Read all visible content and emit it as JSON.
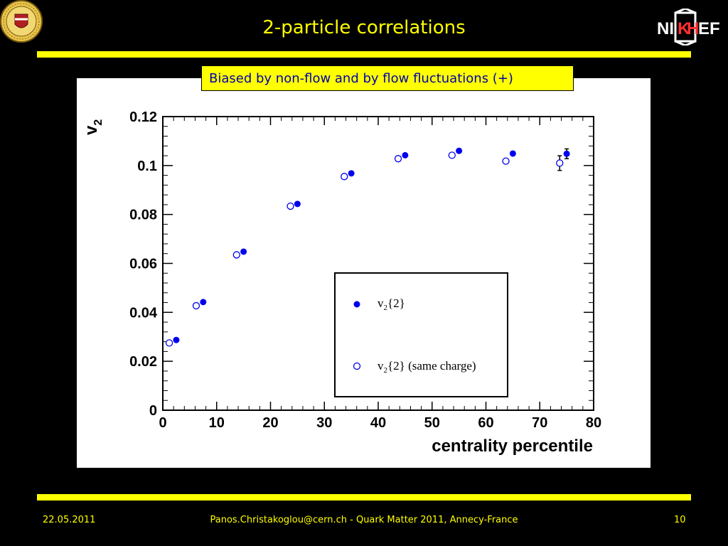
{
  "slide": {
    "title": "2-particle correlations",
    "note": "Biased by non-flow and by flow fluctuations (+)",
    "footer_date": "22.05.2011",
    "footer_credit": "Panos.Christakoglou@cern.ch - Quark Matter 2011, Annecy-France",
    "footer_page": "10",
    "logo_right": "NIKHEF",
    "logo_left_icon": "university-seal-icon",
    "colors": {
      "background": "#000000",
      "accent": "#ffff00",
      "note_text": "#0000aa",
      "marker": "#0000ee"
    }
  },
  "chart_data": {
    "type": "scatter",
    "xlabel": "centrality percentile",
    "ylabel": "v",
    "ylabel_sub": "2",
    "xlim": [
      0,
      80
    ],
    "ylim": [
      0,
      0.12
    ],
    "x_ticks": [
      "0",
      "10",
      "20",
      "30",
      "40",
      "50",
      "60",
      "70",
      "80"
    ],
    "y_ticks": [
      "0",
      "0.02",
      "0.04",
      "0.06",
      "0.08",
      "0.1",
      "0.12"
    ],
    "grid": false,
    "legend_position": "bottom-right",
    "series": [
      {
        "name": "v2{2}",
        "legend_main": "v",
        "legend_sub": "2",
        "legend_rest": "{2}",
        "marker": "filled-circle",
        "x": [
          2.5,
          7.5,
          15,
          25,
          35,
          45,
          55,
          65,
          75
        ],
        "y": [
          0.0287,
          0.0442,
          0.0648,
          0.0843,
          0.0968,
          0.1042,
          0.106,
          0.1049,
          0.1048
        ],
        "err": [
          0,
          0,
          0,
          0,
          0,
          0,
          0,
          0,
          0.002
        ]
      },
      {
        "name": "v2{2} (same charge)",
        "legend_main": "v",
        "legend_sub": "2",
        "legend_rest": "{2} (same charge)",
        "marker": "open-circle",
        "x": [
          1.2,
          6.2,
          13.7,
          23.7,
          33.7,
          43.7,
          53.7,
          63.7,
          73.7
        ],
        "y": [
          0.0275,
          0.0427,
          0.0635,
          0.0834,
          0.0955,
          0.1028,
          0.1042,
          0.1018,
          0.101
        ],
        "err": [
          0,
          0,
          0,
          0,
          0,
          0,
          0,
          0,
          0.003
        ]
      }
    ]
  }
}
